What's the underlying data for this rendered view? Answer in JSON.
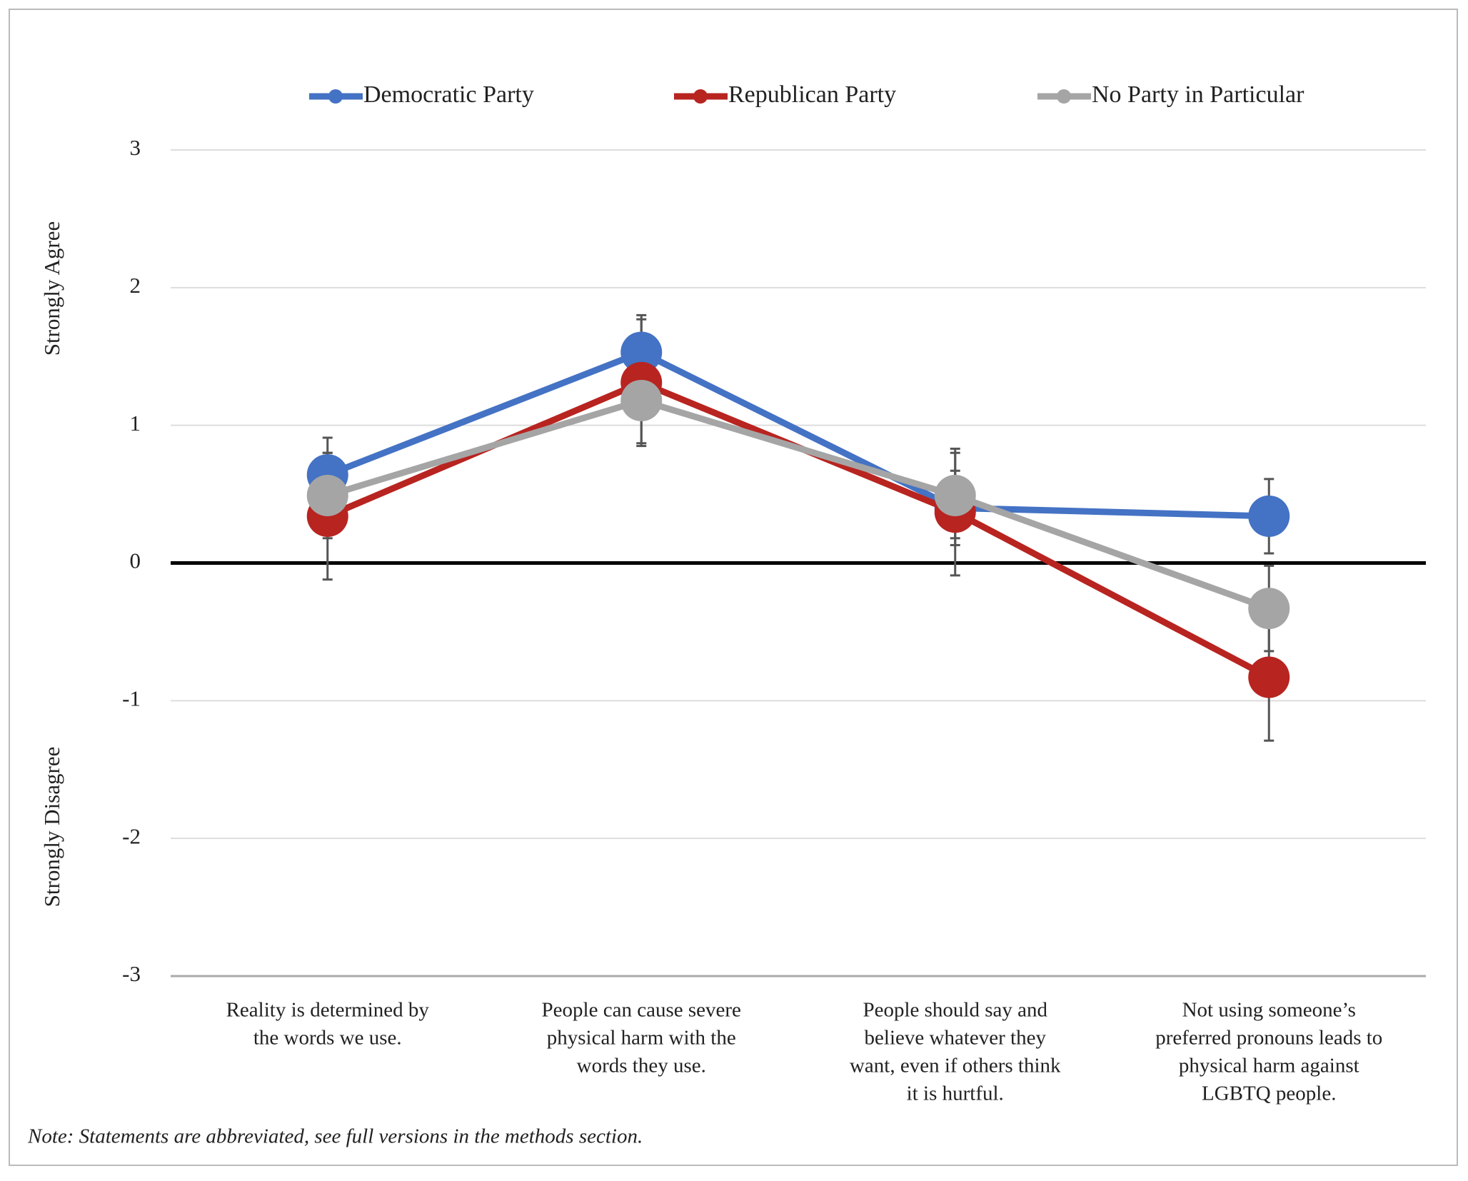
{
  "chart_data": {
    "type": "line",
    "categories": [
      [
        "Reality is determined by",
        "the words we use."
      ],
      [
        "People can cause severe",
        "physical harm with the",
        "words they use."
      ],
      [
        "People should say and",
        "believe whatever they",
        "want, even if others think",
        "it is hurtful."
      ],
      [
        "Not using someone’s",
        "preferred pronouns leads to",
        "physical harm against",
        "LGBTQ people."
      ]
    ],
    "series": [
      {
        "name": "Democratic Party",
        "color": "#4472c4",
        "values": [
          0.64,
          1.53,
          0.4,
          0.34
        ],
        "errors": [
          0.27,
          0.27,
          0.27,
          0.27
        ]
      },
      {
        "name": "Republican Party",
        "color": "#b82420",
        "values": [
          0.34,
          1.31,
          0.37,
          -0.83
        ],
        "errors": [
          0.46,
          0.46,
          0.46,
          0.46
        ]
      },
      {
        "name": "No Party in Particular",
        "color": "#a5a5a5",
        "values": [
          0.49,
          1.18,
          0.49,
          -0.33
        ],
        "errors": [
          0.31,
          0.31,
          0.31,
          0.31
        ]
      }
    ],
    "ylim": [
      -3,
      3
    ],
    "yticks": [
      -3,
      -2,
      -1,
      0,
      1,
      2,
      3
    ],
    "grid": true,
    "legend": "top",
    "y_annotations": [
      "Strongly Agree",
      "Strongly Disagree"
    ],
    "note": "Note: Statements are abbreviated, see full versions in the methods section."
  }
}
